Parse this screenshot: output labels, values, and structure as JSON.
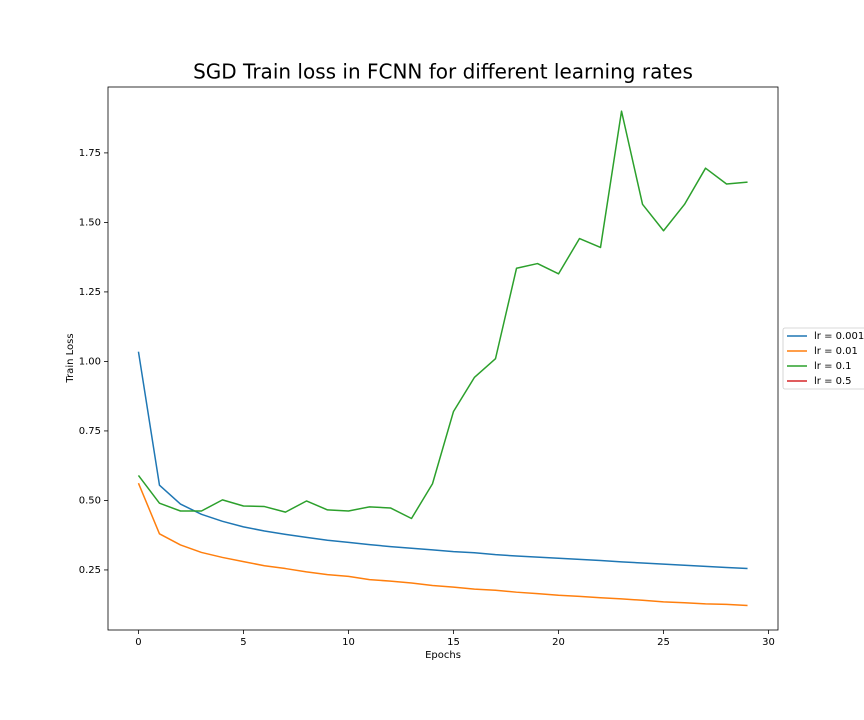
{
  "chart_data": {
    "type": "line",
    "title": "SGD Train loss in FCNN for different learning rates",
    "xlabel": "Epochs",
    "ylabel": "Train Loss",
    "x": [
      0,
      1,
      2,
      3,
      4,
      5,
      6,
      7,
      8,
      9,
      10,
      11,
      12,
      13,
      14,
      15,
      16,
      17,
      18,
      19,
      20,
      21,
      22,
      23,
      24,
      25,
      26,
      27,
      28,
      29
    ],
    "series": [
      {
        "name": "lr = 0.001",
        "color": "#1f77b4",
        "values": [
          1.035,
          0.555,
          0.487,
          0.45,
          0.425,
          0.405,
          0.39,
          0.378,
          0.367,
          0.357,
          0.349,
          0.341,
          0.334,
          0.328,
          0.322,
          0.316,
          0.312,
          0.305,
          0.3,
          0.296,
          0.292,
          0.288,
          0.284,
          0.279,
          0.275,
          0.271,
          0.267,
          0.263,
          0.259,
          0.255
        ]
      },
      {
        "name": "lr = 0.01",
        "color": "#ff7f0e",
        "values": [
          0.562,
          0.38,
          0.34,
          0.313,
          0.295,
          0.28,
          0.265,
          0.255,
          0.243,
          0.233,
          0.227,
          0.215,
          0.21,
          0.203,
          0.194,
          0.188,
          0.181,
          0.177,
          0.17,
          0.165,
          0.159,
          0.155,
          0.15,
          0.146,
          0.141,
          0.135,
          0.132,
          0.128,
          0.126,
          0.122
        ]
      },
      {
        "name": "lr = 0.1",
        "color": "#2ca02c",
        "values": [
          0.59,
          0.49,
          0.462,
          0.462,
          0.502,
          0.48,
          0.478,
          0.458,
          0.498,
          0.466,
          0.462,
          0.477,
          0.473,
          0.435,
          0.56,
          0.82,
          0.943,
          1.01,
          1.335,
          1.352,
          1.315,
          1.442,
          1.41,
          1.9,
          1.565,
          1.47,
          1.565,
          1.695,
          1.638,
          1.645
        ]
      },
      {
        "name": "lr = 0.5",
        "color": "#d62728",
        "values": [
          null,
          null,
          null,
          null,
          null,
          null,
          null,
          null,
          null,
          null,
          null,
          null,
          null,
          null,
          null,
          null,
          null,
          null,
          null,
          null,
          null,
          null,
          null,
          null,
          null,
          null,
          null,
          null,
          null,
          null
        ]
      }
    ],
    "xlim": [
      -1.45,
      30.45
    ],
    "xticks": [
      0,
      5,
      10,
      15,
      20,
      25,
      30
    ],
    "ylim": [
      0.034,
      1.987
    ],
    "yticks": [
      0.25,
      {
        "value": 0.5,
        "label": "0.50"
      },
      0.75,
      {
        "value": 1.0,
        "label": "1.00"
      },
      1.25,
      {
        "value": 1.5,
        "label": "1.50"
      },
      1.75
    ],
    "legend": "right"
  }
}
